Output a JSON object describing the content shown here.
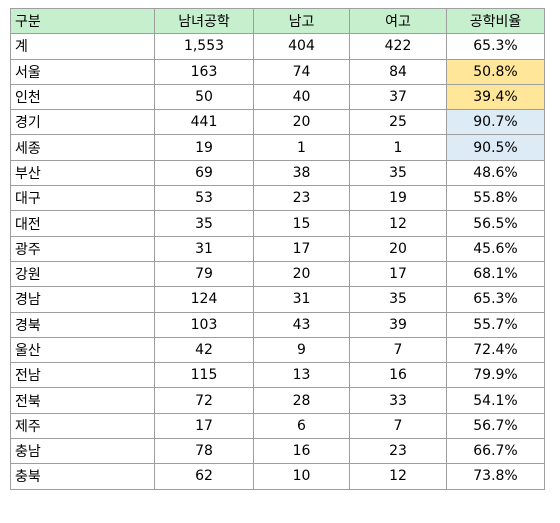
{
  "table": {
    "headers": [
      "구분",
      "남녀공학",
      "남고",
      "여고",
      "공학비율"
    ],
    "rows": [
      {
        "region": "계",
        "coed": "1,553",
        "boys": "404",
        "girls": "422",
        "rate": "65.3%",
        "highlight": ""
      },
      {
        "region": "서울",
        "coed": "163",
        "boys": "74",
        "girls": "84",
        "rate": "50.8%",
        "highlight": "warm"
      },
      {
        "region": "인천",
        "coed": "50",
        "boys": "40",
        "girls": "37",
        "rate": "39.4%",
        "highlight": "warm"
      },
      {
        "region": "경기",
        "coed": "441",
        "boys": "20",
        "girls": "25",
        "rate": "90.7%",
        "highlight": "cool"
      },
      {
        "region": "세종",
        "coed": "19",
        "boys": "1",
        "girls": "1",
        "rate": "90.5%",
        "highlight": "cool"
      },
      {
        "region": "부산",
        "coed": "69",
        "boys": "38",
        "girls": "35",
        "rate": "48.6%",
        "highlight": ""
      },
      {
        "region": "대구",
        "coed": "53",
        "boys": "23",
        "girls": "19",
        "rate": "55.8%",
        "highlight": ""
      },
      {
        "region": "대전",
        "coed": "35",
        "boys": "15",
        "girls": "12",
        "rate": "56.5%",
        "highlight": ""
      },
      {
        "region": "광주",
        "coed": "31",
        "boys": "17",
        "girls": "20",
        "rate": "45.6%",
        "highlight": ""
      },
      {
        "region": "강원",
        "coed": "79",
        "boys": "20",
        "girls": "17",
        "rate": "68.1%",
        "highlight": ""
      },
      {
        "region": "경남",
        "coed": "124",
        "boys": "31",
        "girls": "35",
        "rate": "65.3%",
        "highlight": ""
      },
      {
        "region": "경북",
        "coed": "103",
        "boys": "43",
        "girls": "39",
        "rate": "55.7%",
        "highlight": ""
      },
      {
        "region": "울산",
        "coed": "42",
        "boys": "9",
        "girls": "7",
        "rate": "72.4%",
        "highlight": ""
      },
      {
        "region": "전남",
        "coed": "115",
        "boys": "13",
        "girls": "16",
        "rate": "79.9%",
        "highlight": ""
      },
      {
        "region": "전북",
        "coed": "72",
        "boys": "28",
        "girls": "33",
        "rate": "54.1%",
        "highlight": ""
      },
      {
        "region": "제주",
        "coed": "17",
        "boys": "6",
        "girls": "7",
        "rate": "56.7%",
        "highlight": ""
      },
      {
        "region": "충남",
        "coed": "78",
        "boys": "16",
        "girls": "23",
        "rate": "66.7%",
        "highlight": ""
      },
      {
        "region": "충북",
        "coed": "62",
        "boys": "10",
        "girls": "12",
        "rate": "73.8%",
        "highlight": ""
      }
    ]
  },
  "colors": {
    "header_fill": "#c6efce",
    "highlight_warm": "#ffe699",
    "highlight_cool": "#ddebf7",
    "grid_line": "#9e9e9e"
  }
}
